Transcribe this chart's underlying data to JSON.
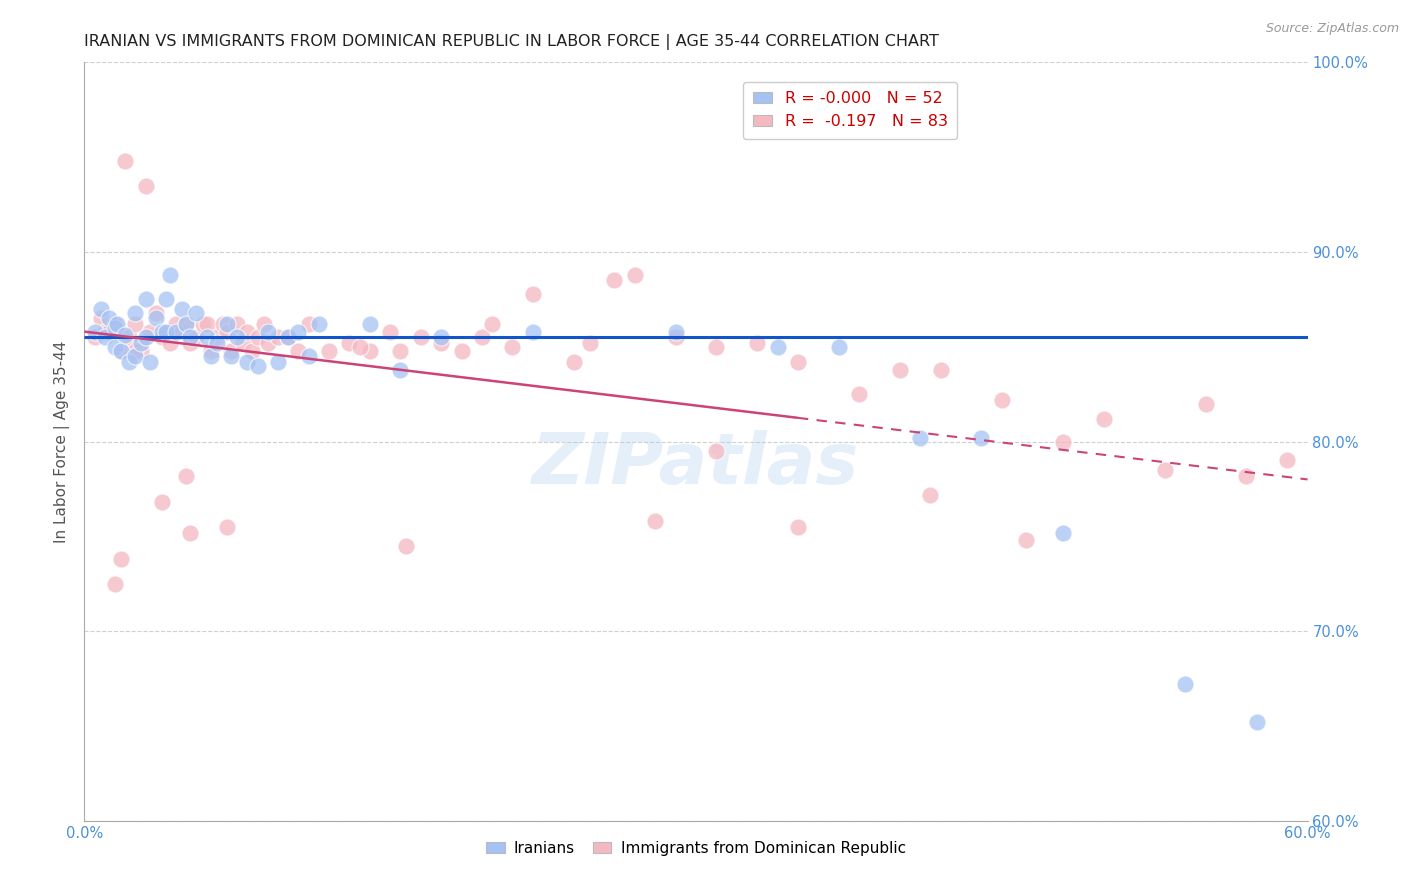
{
  "title": "IRANIAN VS IMMIGRANTS FROM DOMINICAN REPUBLIC IN LABOR FORCE | AGE 35-44 CORRELATION CHART",
  "source": "Source: ZipAtlas.com",
  "ylabel": "In Labor Force | Age 35-44",
  "xlim": [
    0.0,
    0.6
  ],
  "ylim": [
    0.6,
    1.0
  ],
  "xtick_positions": [
    0.0,
    0.1,
    0.2,
    0.3,
    0.4,
    0.5,
    0.6
  ],
  "xtick_labels": [
    "0.0%",
    "",
    "",
    "",
    "",
    "",
    "60.0%"
  ],
  "ytick_positions": [
    0.6,
    0.7,
    0.8,
    0.9,
    1.0
  ],
  "ytick_labels": [
    "60.0%",
    "70.0%",
    "80.0%",
    "90.0%",
    "100.0%"
  ],
  "blue_color": "#a4c2f4",
  "pink_color": "#f4b8c1",
  "blue_line_color": "#1155cc",
  "pink_line_color": "#cc4477",
  "label_iranians": "Iranians",
  "label_dominican": "Immigrants from Dominican Republic",
  "blue_x": [
    0.005,
    0.008,
    0.01,
    0.012,
    0.015,
    0.015,
    0.016,
    0.018,
    0.02,
    0.022,
    0.025,
    0.025,
    0.028,
    0.03,
    0.03,
    0.032,
    0.035,
    0.038,
    0.04,
    0.04,
    0.042,
    0.045,
    0.048,
    0.05,
    0.052,
    0.055,
    0.06,
    0.062,
    0.065,
    0.07,
    0.072,
    0.075,
    0.08,
    0.085,
    0.09,
    0.095,
    0.1,
    0.105,
    0.11,
    0.115,
    0.14,
    0.155,
    0.175,
    0.22,
    0.29,
    0.34,
    0.37,
    0.41,
    0.44,
    0.48,
    0.54,
    0.575
  ],
  "blue_y": [
    0.858,
    0.87,
    0.855,
    0.865,
    0.86,
    0.85,
    0.862,
    0.848,
    0.856,
    0.842,
    0.868,
    0.845,
    0.852,
    0.875,
    0.855,
    0.842,
    0.865,
    0.858,
    0.875,
    0.858,
    0.888,
    0.858,
    0.87,
    0.862,
    0.855,
    0.868,
    0.855,
    0.845,
    0.852,
    0.862,
    0.845,
    0.855,
    0.842,
    0.84,
    0.858,
    0.842,
    0.855,
    0.858,
    0.845,
    0.862,
    0.862,
    0.838,
    0.855,
    0.858,
    0.858,
    0.85,
    0.85,
    0.802,
    0.802,
    0.752,
    0.672,
    0.652
  ],
  "blue_line_y0": 0.855,
  "blue_line_y1": 0.855,
  "pink_x": [
    0.005,
    0.008,
    0.01,
    0.012,
    0.015,
    0.018,
    0.02,
    0.022,
    0.025,
    0.028,
    0.03,
    0.032,
    0.035,
    0.038,
    0.04,
    0.042,
    0.045,
    0.048,
    0.05,
    0.052,
    0.055,
    0.058,
    0.06,
    0.062,
    0.065,
    0.068,
    0.07,
    0.072,
    0.075,
    0.078,
    0.08,
    0.082,
    0.085,
    0.088,
    0.09,
    0.095,
    0.1,
    0.105,
    0.11,
    0.12,
    0.13,
    0.14,
    0.155,
    0.165,
    0.175,
    0.185,
    0.195,
    0.2,
    0.21,
    0.22,
    0.24,
    0.26,
    0.27,
    0.29,
    0.31,
    0.33,
    0.35,
    0.38,
    0.4,
    0.42,
    0.45,
    0.48,
    0.5,
    0.53,
    0.55,
    0.57,
    0.59,
    0.135,
    0.15,
    0.248,
    0.31,
    0.415,
    0.462,
    0.35,
    0.158,
    0.28,
    0.07,
    0.05,
    0.038,
    0.025,
    0.018,
    0.015,
    0.052
  ],
  "pink_y": [
    0.855,
    0.865,
    0.858,
    0.858,
    0.862,
    0.848,
    0.948,
    0.855,
    0.862,
    0.848,
    0.935,
    0.858,
    0.868,
    0.855,
    0.858,
    0.852,
    0.862,
    0.858,
    0.862,
    0.852,
    0.855,
    0.862,
    0.862,
    0.848,
    0.855,
    0.862,
    0.858,
    0.848,
    0.862,
    0.852,
    0.858,
    0.848,
    0.855,
    0.862,
    0.852,
    0.855,
    0.855,
    0.848,
    0.862,
    0.848,
    0.852,
    0.848,
    0.848,
    0.855,
    0.852,
    0.848,
    0.855,
    0.862,
    0.85,
    0.878,
    0.842,
    0.885,
    0.888,
    0.855,
    0.85,
    0.852,
    0.842,
    0.825,
    0.838,
    0.838,
    0.822,
    0.8,
    0.812,
    0.785,
    0.82,
    0.782,
    0.79,
    0.85,
    0.858,
    0.852,
    0.795,
    0.772,
    0.748,
    0.755,
    0.745,
    0.758,
    0.755,
    0.782,
    0.768,
    0.848,
    0.738,
    0.725,
    0.752
  ],
  "pink_line_y0": 0.858,
  "pink_line_y1": 0.78,
  "background_color": "#ffffff",
  "grid_color": "#d0d0d0",
  "title_fontsize": 11.5,
  "watermark": "ZIPatlas"
}
